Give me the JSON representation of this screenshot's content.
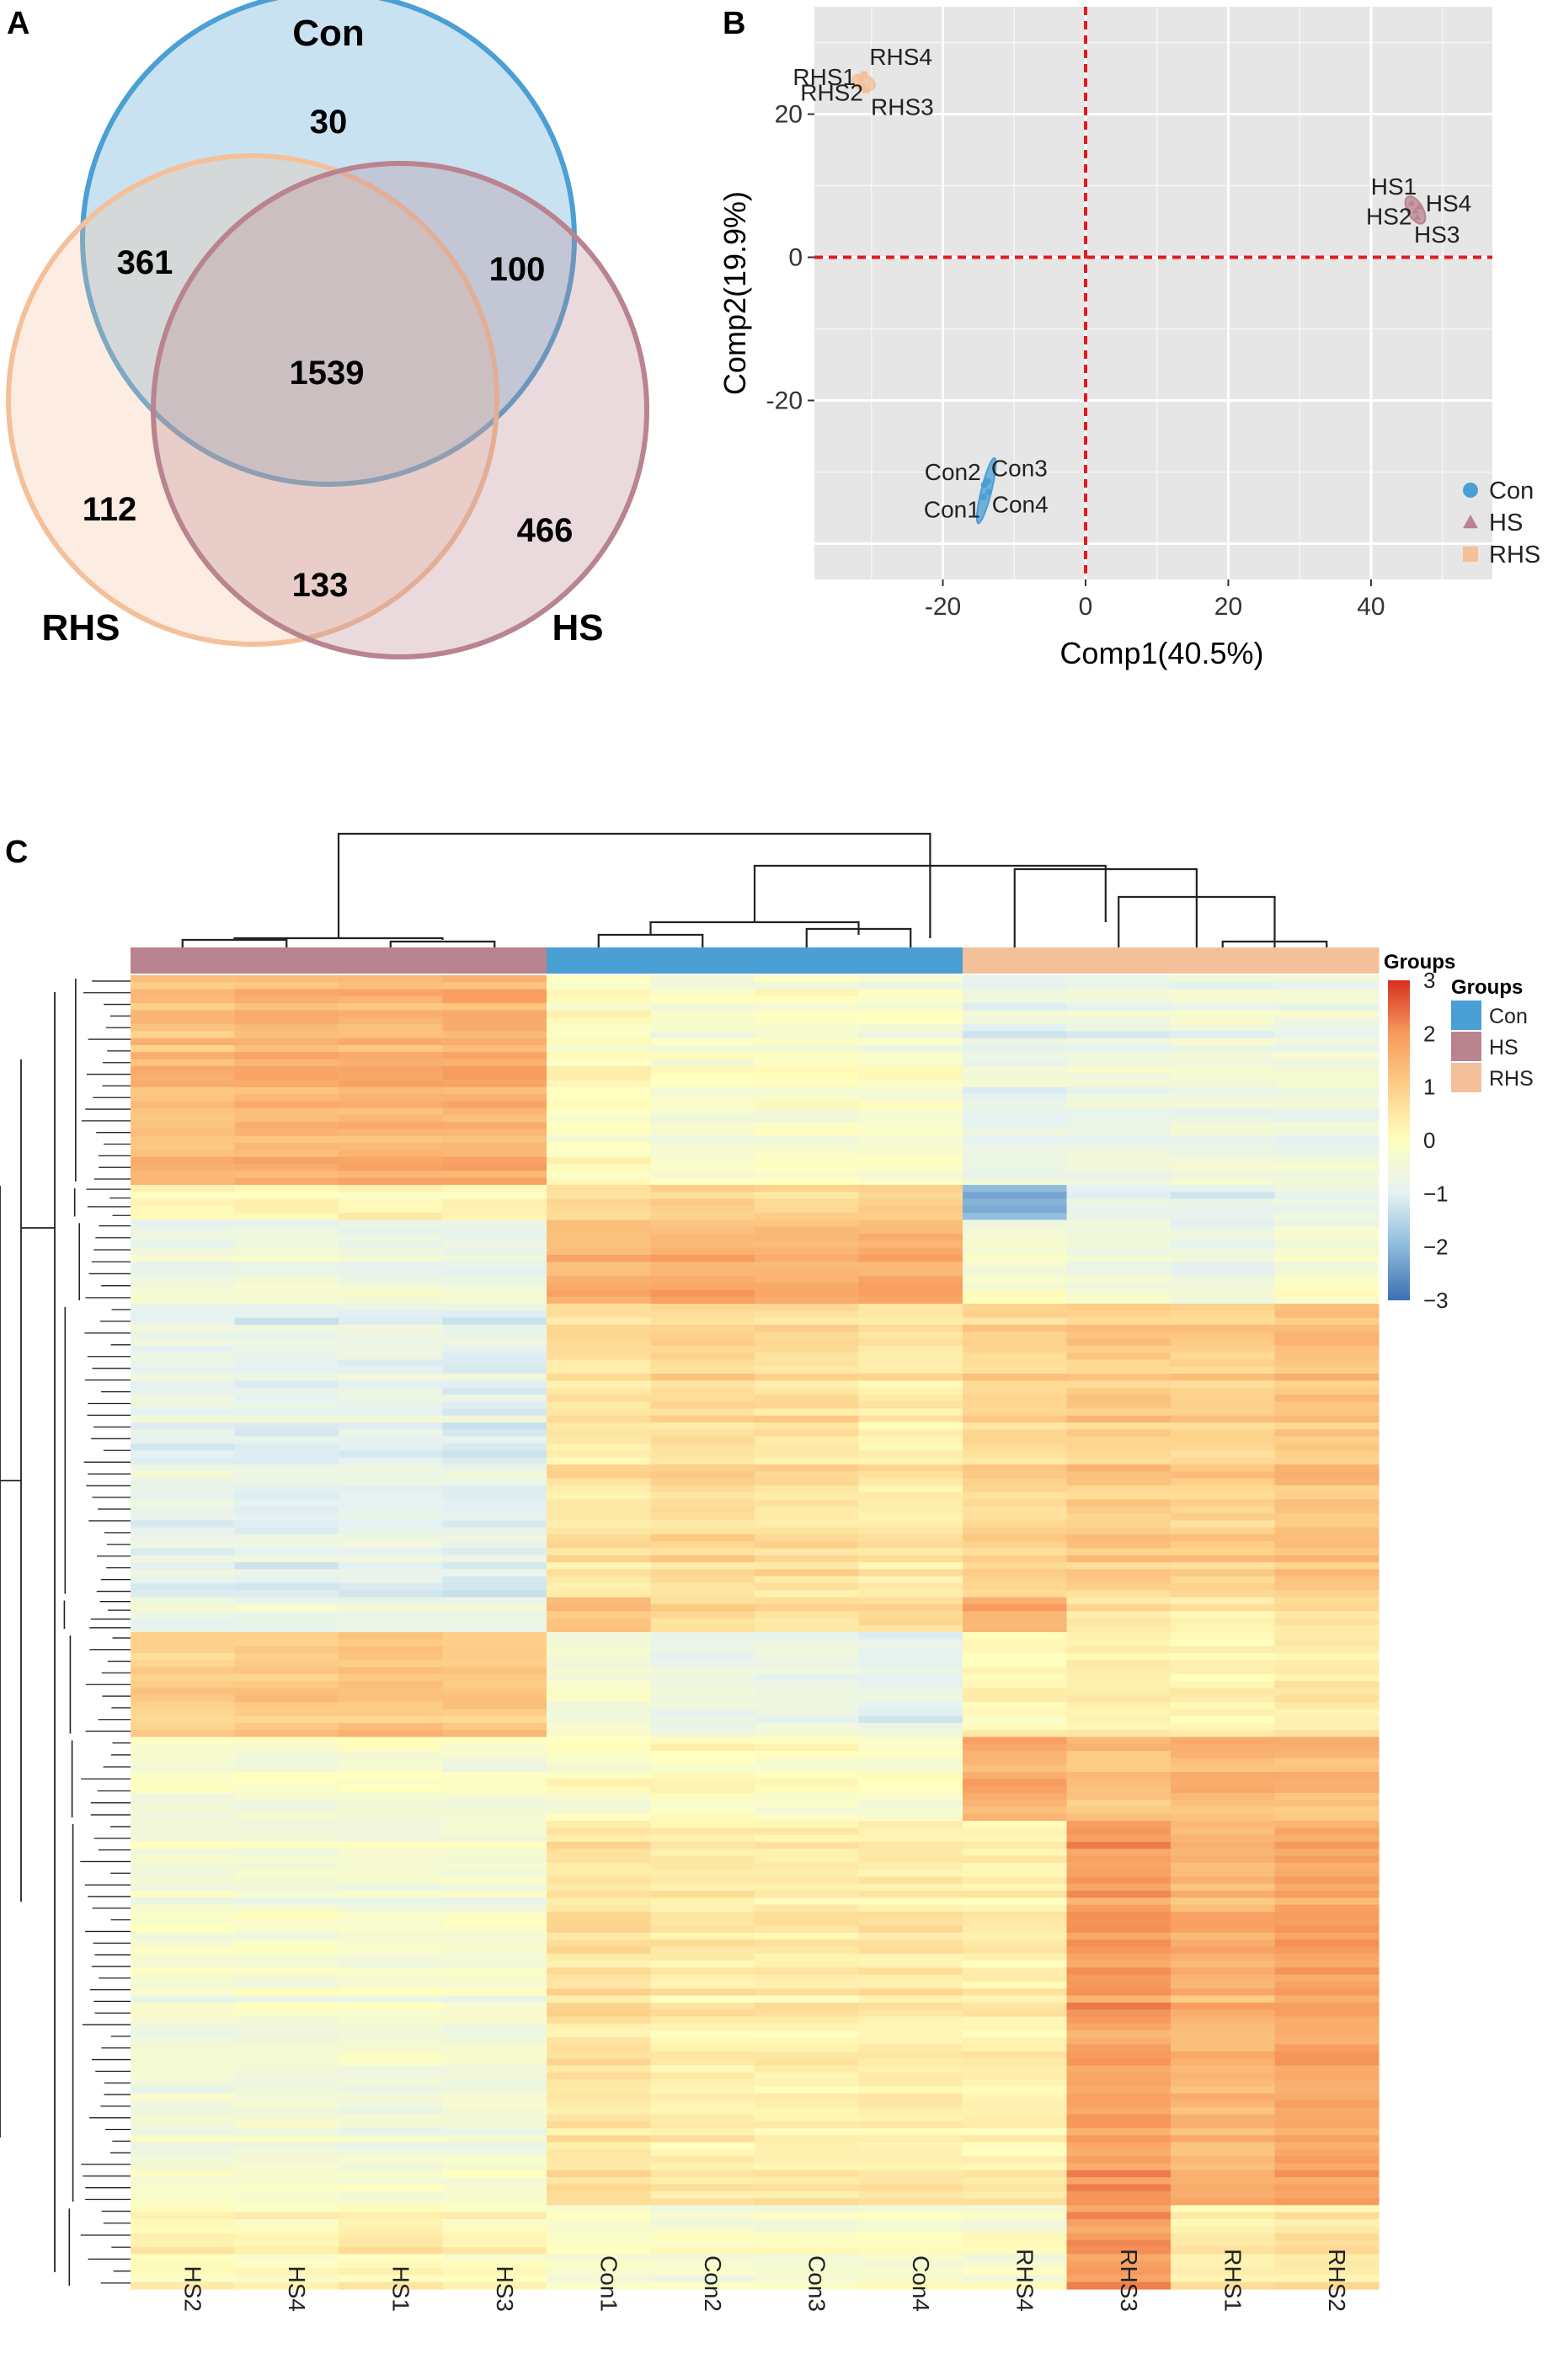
{
  "panels": {
    "a": "A",
    "b": "B",
    "c": "C"
  },
  "colors": {
    "con": "#4a9fd4",
    "hs": "#b9838f",
    "rhs": "#f4c09a",
    "ref_line": "#e41a1c",
    "pca_bg": "#e6e6e6"
  },
  "chart_data": [
    {
      "type": "venn",
      "panel": "A",
      "sets": [
        {
          "name": "Con",
          "color": "#4a9fd4"
        },
        {
          "name": "RHS",
          "color": "#f4c09a"
        },
        {
          "name": "HS",
          "color": "#b9838f"
        }
      ],
      "regions": [
        {
          "sets": [
            "Con"
          ],
          "count": 30
        },
        {
          "sets": [
            "Con",
            "RHS"
          ],
          "count": 361
        },
        {
          "sets": [
            "Con",
            "HS"
          ],
          "count": 100
        },
        {
          "sets": [
            "Con",
            "RHS",
            "HS"
          ],
          "count": 1539
        },
        {
          "sets": [
            "RHS"
          ],
          "count": 112
        },
        {
          "sets": [
            "HS"
          ],
          "count": 466
        },
        {
          "sets": [
            "RHS",
            "HS"
          ],
          "count": 133
        }
      ]
    },
    {
      "type": "scatter",
      "panel": "B",
      "xlabel": "Comp1(40.5%)",
      "ylabel": "Comp2(19.9%)",
      "xlim": [
        -38,
        57
      ],
      "ylim": [
        -45,
        35
      ],
      "xticks": [
        -20,
        0,
        20,
        40
      ],
      "yticks": [
        20,
        0,
        -20
      ],
      "grid": true,
      "reference_lines": {
        "x": 0,
        "y": 0
      },
      "legend_position": "bottom-right",
      "series": [
        {
          "name": "Con",
          "marker": "circle",
          "color": "#4a9fd4",
          "points": [
            {
              "label": "Con1",
              "x": -14.3,
              "y": -33.5
            },
            {
              "label": "Con2",
              "x": -14.2,
              "y": -31.8
            },
            {
              "label": "Con3",
              "x": -13.7,
              "y": -31.3
            },
            {
              "label": "Con4",
              "x": -13.6,
              "y": -32.8
            }
          ]
        },
        {
          "name": "HS",
          "marker": "triangle",
          "color": "#b9838f",
          "points": [
            {
              "label": "HS1",
              "x": 45.7,
              "y": 7.6
            },
            {
              "label": "HS2",
              "x": 46.2,
              "y": 6.5
            },
            {
              "label": "HS4",
              "x": 46.7,
              "y": 7.1
            },
            {
              "label": "HS3",
              "x": 46.5,
              "y": 5.6
            }
          ]
        },
        {
          "name": "RHS",
          "marker": "square",
          "color": "#f4c09a",
          "points": [
            {
              "label": "RHS1",
              "x": -31.5,
              "y": 25.0
            },
            {
              "label": "RHS4",
              "x": -31.0,
              "y": 25.5
            },
            {
              "label": "RHS2",
              "x": -31.4,
              "y": 24.0
            },
            {
              "label": "RHS3",
              "x": -30.8,
              "y": 23.4
            }
          ]
        }
      ]
    },
    {
      "type": "heatmap",
      "panel": "C",
      "columns": [
        "HS2",
        "HS4",
        "HS1",
        "HS3",
        "Con1",
        "Con2",
        "Con3",
        "Con4",
        "RHS4",
        "RHS3",
        "RHS1",
        "RHS2"
      ],
      "column_groups": [
        "HS",
        "HS",
        "HS",
        "HS",
        "Con",
        "Con",
        "Con",
        "Con",
        "RHS",
        "RHS",
        "RHS",
        "RHS"
      ],
      "group_annotation_title": "Groups",
      "color_scale": {
        "min": -3,
        "max": 3,
        "ticks": [
          3,
          2,
          1,
          0,
          -1,
          -2,
          -3
        ],
        "stops": [
          "#3a6fb2",
          "#8cbadb",
          "#e4f1f3",
          "#ffffbf",
          "#fdd08a",
          "#f79a5d",
          "#d7301f"
        ]
      },
      "row_blocks": [
        {
          "rows": 30,
          "values": [
            1.3,
            1.5,
            1.5,
            1.6,
            0.0,
            -0.3,
            -0.2,
            -0.3,
            -0.8,
            -0.7,
            -0.6,
            -0.6
          ]
        },
        {
          "rows": 5,
          "values": [
            0.2,
            0.3,
            0.3,
            0.2,
            0.8,
            1.0,
            0.9,
            1.1,
            -2.0,
            -0.8,
            -0.8,
            -0.7
          ]
        },
        {
          "rows": 12,
          "values": [
            -0.6,
            -0.5,
            -0.6,
            -0.6,
            1.5,
            1.6,
            1.6,
            1.7,
            -0.3,
            -0.5,
            -0.6,
            -0.3
          ]
        },
        {
          "rows": 42,
          "values": [
            -0.8,
            -0.9,
            -0.8,
            -0.9,
            0.6,
            0.8,
            0.7,
            0.5,
            0.9,
            1.1,
            1.0,
            1.3
          ]
        },
        {
          "rows": 5,
          "values": [
            -0.5,
            -0.5,
            -0.5,
            -0.5,
            1.4,
            1.0,
            0.9,
            1.0,
            1.8,
            0.7,
            0.6,
            0.8
          ]
        },
        {
          "rows": 15,
          "values": [
            1.0,
            1.2,
            1.3,
            1.2,
            -0.3,
            -0.6,
            -0.6,
            -0.8,
            0.2,
            0.4,
            0.3,
            0.5
          ]
        },
        {
          "rows": 12,
          "values": [
            -0.3,
            -0.3,
            -0.2,
            -0.3,
            -0.1,
            0.1,
            0.0,
            -0.2,
            1.6,
            1.3,
            1.5,
            1.4
          ]
        },
        {
          "rows": 55,
          "values": [
            -0.4,
            -0.4,
            -0.4,
            -0.4,
            0.6,
            0.4,
            0.4,
            0.4,
            0.3,
            1.9,
            1.5,
            1.8
          ]
        },
        {
          "rows": 12,
          "values": [
            0.2,
            0.1,
            0.3,
            0.1,
            -0.2,
            -0.3,
            -0.3,
            -0.2,
            -0.2,
            1.9,
            0.4,
            0.5
          ]
        }
      ]
    }
  ]
}
